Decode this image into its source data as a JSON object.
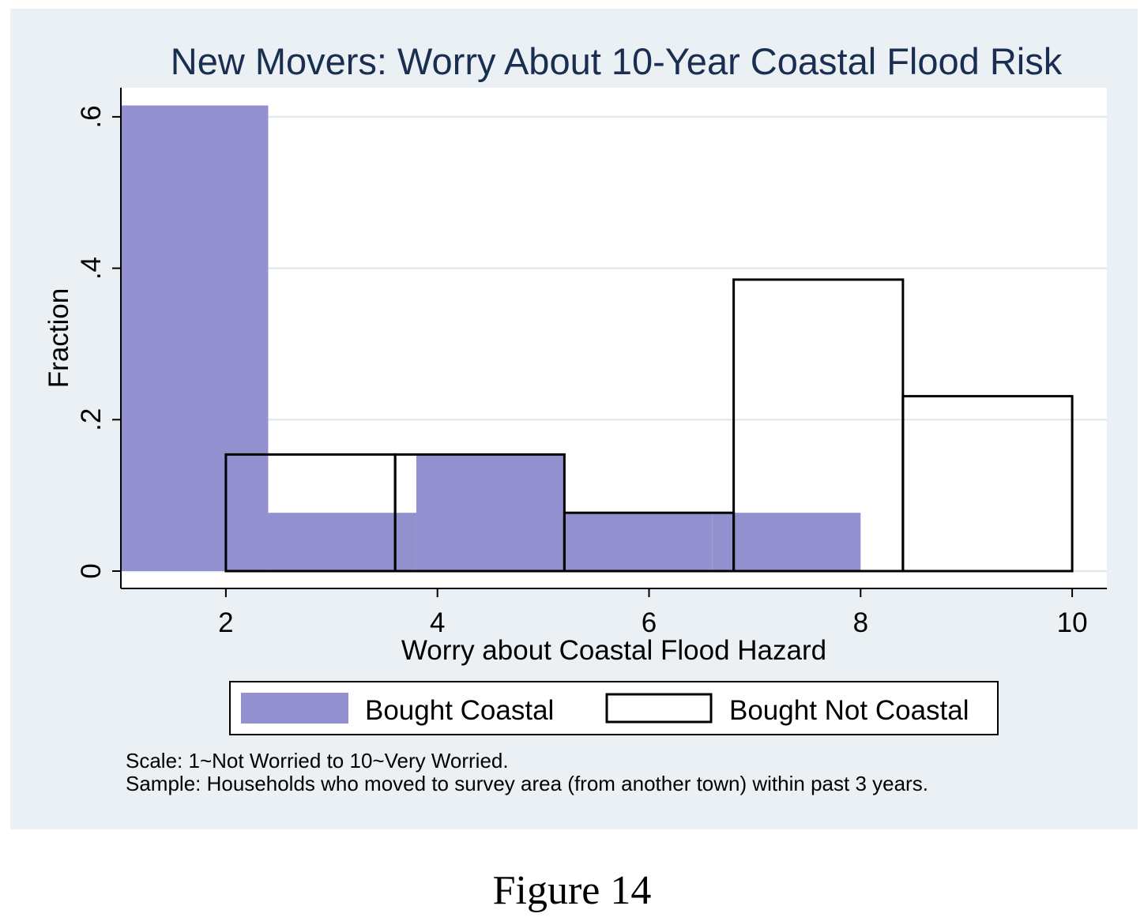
{
  "figure_caption": "Figure 14",
  "chart_data": {
    "type": "bar",
    "title": "New Movers: Worry About 10-Year Coastal Flood Risk",
    "xlabel": "Worry about Coastal Flood Hazard",
    "ylabel": "Fraction",
    "xlim": [
      1,
      10
    ],
    "ylim": [
      0,
      0.62
    ],
    "x_ticks": [
      2,
      4,
      6,
      8,
      10
    ],
    "x_tick_labels": [
      "2",
      "4",
      "6",
      "8",
      "10"
    ],
    "y_ticks": [
      0,
      0.2,
      0.4,
      0.6
    ],
    "y_tick_labels": [
      "0",
      ".2",
      ".4",
      ".6"
    ],
    "grid": true,
    "legend_position": "bottom",
    "series": [
      {
        "name": "Bought Coastal",
        "style": "filled",
        "color": "#9290cf",
        "bins": [
          {
            "x0": 1.0,
            "x1": 2.4,
            "y": 0.615
          },
          {
            "x0": 2.4,
            "x1": 3.8,
            "y": 0.077
          },
          {
            "x0": 3.8,
            "x1": 5.2,
            "y": 0.154
          },
          {
            "x0": 5.2,
            "x1": 6.6,
            "y": 0.077
          },
          {
            "x0": 6.6,
            "x1": 8.0,
            "y": 0.077
          }
        ]
      },
      {
        "name": "Bought Not Coastal",
        "style": "outline",
        "color": "#000000",
        "bins": [
          {
            "x0": 2.0,
            "x1": 3.6,
            "y": 0.154
          },
          {
            "x0": 3.6,
            "x1": 5.2,
            "y": 0.154
          },
          {
            "x0": 5.2,
            "x1": 6.8,
            "y": 0.077
          },
          {
            "x0": 6.8,
            "x1": 8.4,
            "y": 0.385
          },
          {
            "x0": 8.4,
            "x1": 10.0,
            "y": 0.231
          }
        ]
      }
    ],
    "notes": [
      "Scale: 1~Not Worried to 10~Very Worried.",
      "Sample: Households who moved to survey area (from another town) within past 3 years."
    ],
    "colors": {
      "title": "#1a2e52",
      "plot_background": "#ffffff",
      "figure_background": "#eaf0f3",
      "grid": "#e3eaee"
    }
  }
}
